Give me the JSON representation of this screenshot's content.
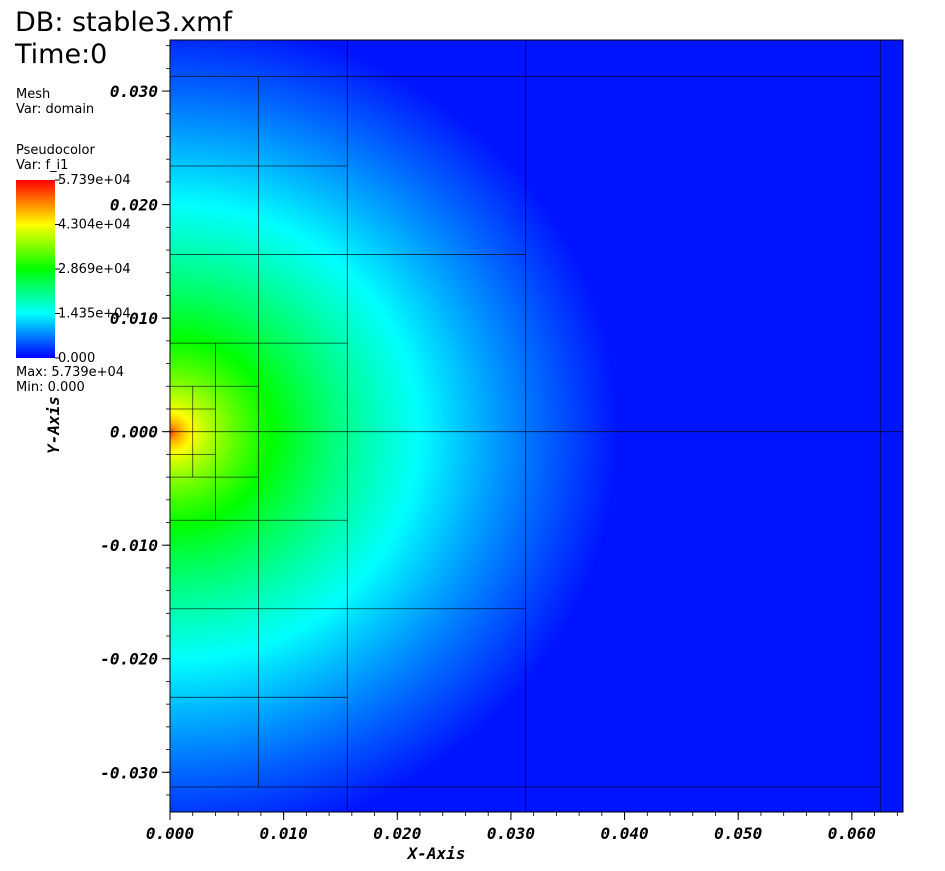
{
  "header": {
    "db": "DB: stable3.xmf",
    "time": "Time:0"
  },
  "mesh_legend": {
    "plot": "Mesh",
    "var": "Var: domain"
  },
  "pseudocolor_legend": {
    "plot": "Pseudocolor",
    "var": "Var: f_i1",
    "ticks": [
      "5.739e+04",
      "4.304e+04",
      "2.869e+04",
      "1.435e+04",
      "0.000"
    ],
    "max": "Max:  5.739e+04",
    "min": "Min:  0.000",
    "colormap": [
      "#ff0000",
      "#ffff00",
      "#00ff00",
      "#00ffff",
      "#0000ff"
    ]
  },
  "chart_data": {
    "type": "heatmap",
    "title": "",
    "xlabel": "X-Axis",
    "ylabel": "Y-Axis",
    "xlim": [
      0.0,
      0.0645
    ],
    "ylim": [
      -0.0335,
      0.0345
    ],
    "x_ticks": [
      "0.000",
      "0.010",
      "0.020",
      "0.030",
      "0.040",
      "0.050",
      "0.060"
    ],
    "y_ticks": [
      "0.030",
      "0.020",
      "0.010",
      "0.000",
      "-0.010",
      "-0.020",
      "-0.030"
    ],
    "field": {
      "name": "f_i1",
      "min": 0.0,
      "max": 57390,
      "peak_location": [
        0.0,
        0.0
      ],
      "falloff_radius_to_zero": 0.038,
      "decay_exponent": 2.2
    },
    "mesh_lines_x": [
      0.0,
      0.002,
      0.004,
      0.0078,
      0.0156,
      0.0313,
      0.0625
    ],
    "mesh_lines_y": [
      -0.0313,
      -0.0234,
      -0.0156,
      -0.0078,
      -0.004,
      -0.002,
      0.0,
      0.002,
      0.004,
      0.0078,
      0.0156,
      0.0234,
      0.0313
    ]
  }
}
